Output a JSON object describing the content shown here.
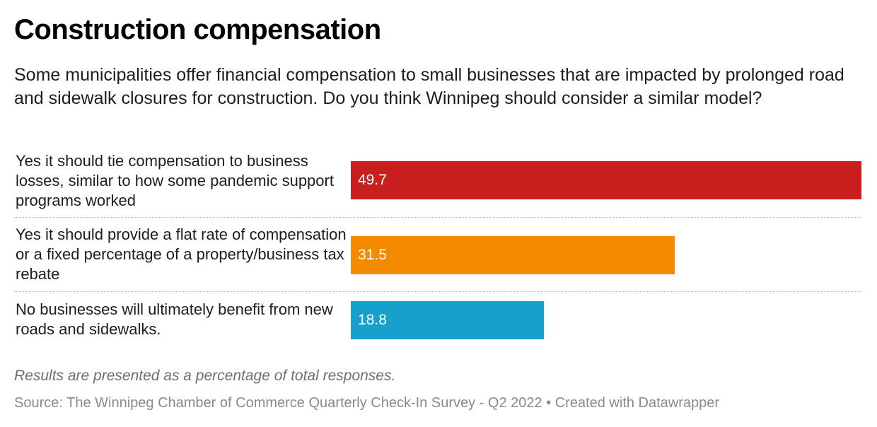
{
  "title": "Construction compensation",
  "subtitle": "Some municipalities offer financial compensation to small businesses that are impacted by prolonged road and sidewalk closures for construction. Do you think Winnipeg should consider a similar model?",
  "note": "Results are presented as a percentage of total responses.",
  "source": "Source: The Winnipeg Chamber of Commerce Quarterly Check-In Survey - Q2 2022 • Created with Datawrapper",
  "chart_data": {
    "type": "bar",
    "orientation": "horizontal",
    "categories": [
      "Yes it should tie compensation to business losses, similar to how some pandemic support programs worked",
      "Yes it should provide a flat rate of compensation or a fixed percentage of a property/business tax rebate",
      "No businesses will ultimately benefit from new roads and sidewalks."
    ],
    "values": [
      49.7,
      31.5,
      18.8
    ],
    "value_labels": [
      "49.7",
      "31.5",
      "18.8"
    ],
    "colors": [
      "#c81e1e",
      "#f58a00",
      "#18a0cc"
    ],
    "xlim": [
      0,
      49.7
    ],
    "grid": false
  }
}
